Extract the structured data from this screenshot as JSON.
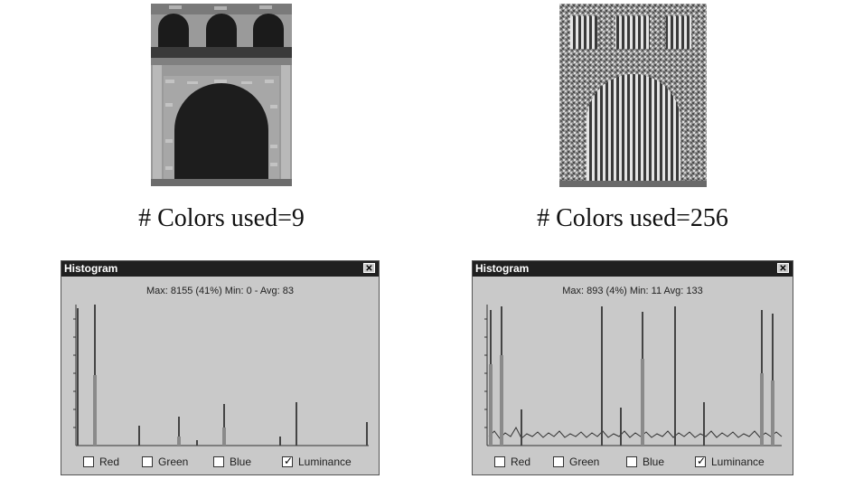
{
  "left": {
    "caption": "# Colors used=9",
    "histogram": {
      "title": "Histogram",
      "stats": "Max: 8155 (41%)  Min: 0 - Avg: 83",
      "options": [
        {
          "label": "Red",
          "checked": false
        },
        {
          "label": "Green",
          "checked": false
        },
        {
          "label": "Blue",
          "checked": false
        },
        {
          "label": "Luminance",
          "checked": true
        }
      ]
    }
  },
  "right": {
    "caption": "# Colors used=256",
    "histogram": {
      "title": "Histogram",
      "stats": "Max: 893 (4%)  Min: 11  Avg: 133",
      "options": [
        {
          "label": "Red",
          "checked": false
        },
        {
          "label": "Green",
          "checked": false
        },
        {
          "label": "Blue",
          "checked": false
        },
        {
          "label": "Luminance",
          "checked": true
        }
      ]
    }
  },
  "icons": {
    "close": "close-icon",
    "checkbox": "checkbox-icon",
    "check": "check-icon"
  }
}
